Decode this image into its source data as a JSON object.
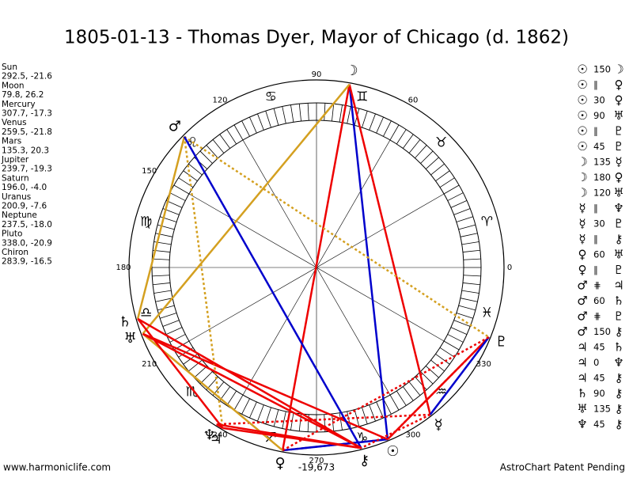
{
  "title": "1805-01-13 - Thomas Dyer, Mayor of Chicago (d. 1862)",
  "planets": [
    {
      "name": "Sun",
      "glyph": "☉",
      "coords": "292.5, -21.6"
    },
    {
      "name": "Moon",
      "glyph": "☽",
      "coords": "79.8, 26.2"
    },
    {
      "name": "Mercury",
      "glyph": "☿",
      "coords": "307.7, -17.3"
    },
    {
      "name": "Venus",
      "glyph": "♀",
      "coords": "259.5, -21.8"
    },
    {
      "name": "Mars",
      "glyph": "♂",
      "coords": "135.3, 20.3"
    },
    {
      "name": "Jupiter",
      "glyph": "♃",
      "coords": "239.7, -19.3"
    },
    {
      "name": "Saturn",
      "glyph": "♄",
      "coords": "196.0, -4.0"
    },
    {
      "name": "Uranus",
      "glyph": "♅",
      "coords": "200.9, -7.6"
    },
    {
      "name": "Neptune",
      "glyph": "♆",
      "coords": "237.5, -18.0"
    },
    {
      "name": "Pluto",
      "glyph": "♇",
      "coords": "338.0, -20.9"
    },
    {
      "name": "Chiron",
      "glyph": "⚷",
      "coords": "283.9, -16.5"
    }
  ],
  "zodiac": [
    "♈",
    "♉",
    "♊",
    "♋",
    "♌",
    "♍",
    "♎",
    "♏",
    "♐",
    "♑",
    "♒",
    "♓"
  ],
  "degree_labels": [
    0,
    60,
    90,
    120,
    150,
    180,
    210,
    240,
    270,
    300,
    330
  ],
  "wheel_note": "-19,673",
  "aspects": [
    {
      "p1": "☉",
      "aspect": 150,
      "p2": "☽"
    },
    {
      "p1": "☉",
      "aspect": "∥",
      "p2": "♀"
    },
    {
      "p1": "☉",
      "aspect": 30,
      "p2": "♀"
    },
    {
      "p1": "☉",
      "aspect": 90,
      "p2": "♅"
    },
    {
      "p1": "☉",
      "aspect": "∥",
      "p2": "♇"
    },
    {
      "p1": "☉",
      "aspect": 45,
      "p2": "♇"
    },
    {
      "p1": "☽",
      "aspect": 135,
      "p2": "☿"
    },
    {
      "p1": "☽",
      "aspect": 180,
      "p2": "♀"
    },
    {
      "p1": "☽",
      "aspect": 120,
      "p2": "♅"
    },
    {
      "p1": "☿",
      "aspect": "∥",
      "p2": "♆"
    },
    {
      "p1": "☿",
      "aspect": 30,
      "p2": "♇"
    },
    {
      "p1": "☿",
      "aspect": "∥",
      "p2": "⚷"
    },
    {
      "p1": "♀",
      "aspect": 60,
      "p2": "♅"
    },
    {
      "p1": "♀",
      "aspect": "∥",
      "p2": "♇"
    },
    {
      "p1": "♂",
      "aspect": "⋕",
      "p2": "♃"
    },
    {
      "p1": "♂",
      "aspect": 60,
      "p2": "♄"
    },
    {
      "p1": "♂",
      "aspect": "⋕",
      "p2": "♇"
    },
    {
      "p1": "♂",
      "aspect": 150,
      "p2": "⚷"
    },
    {
      "p1": "♃",
      "aspect": 45,
      "p2": "♄"
    },
    {
      "p1": "♃",
      "aspect": 0,
      "p2": "♆"
    },
    {
      "p1": "♃",
      "aspect": 45,
      "p2": "⚷"
    },
    {
      "p1": "♄",
      "aspect": 90,
      "p2": "⚷"
    },
    {
      "p1": "♅",
      "aspect": 135,
      "p2": "⚷"
    },
    {
      "p1": "♆",
      "aspect": 45,
      "p2": "⚷"
    }
  ],
  "footer": {
    "left": "www.harmoniclife.com",
    "right": "AstroChart Patent Pending"
  }
}
